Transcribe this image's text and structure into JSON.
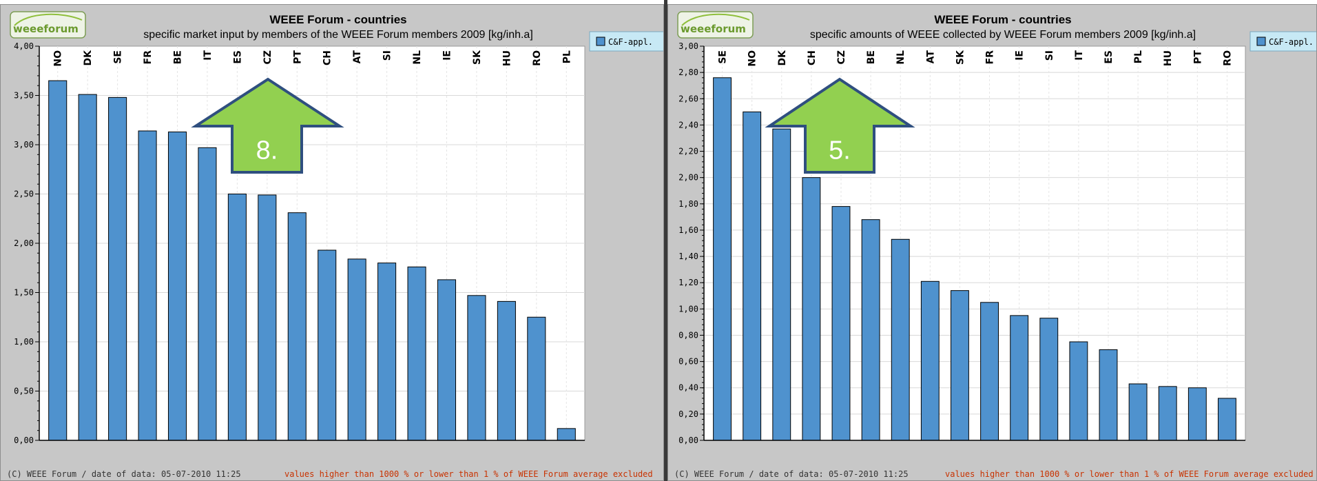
{
  "charts": [
    {
      "logo_text": "weeeforum",
      "title": "WEEE Forum - countries",
      "subtitle": "specific market input by members of the WEEE Forum members 2009 [kg/inh.a]",
      "legend_label": "C&F-appl.",
      "footer_left": "(C) WEEE Forum / date of data: 05-07-2010 11:25",
      "footer_right": "values higher than 1000 % or lower than 1 % of WEEE Forum average excluded",
      "arrow_label": "8.",
      "highlight_category": "CZ",
      "ylim": [
        0,
        4
      ],
      "y_ticks": [
        "0,00",
        "0,50",
        "1,00",
        "1,50",
        "2,00",
        "2,50",
        "3,00",
        "3,50",
        "4,00"
      ],
      "colors": {
        "bar": "#4f92ce",
        "arrow": "#92d050",
        "arrow_border": "#2f4f7f",
        "footer_right": "#c83200"
      }
    },
    {
      "logo_text": "weeeforum",
      "title": "WEEE Forum - countries",
      "subtitle": "specific amounts of WEEE collected by WEEE Forum members 2009 [kg/inh.a]",
      "legend_label": "C&F-appl.",
      "footer_left": "(C) WEEE Forum / date of data: 05-07-2010 11:25",
      "footer_right": "values higher than 1000 % or lower than 1 % of WEEE Forum average excluded",
      "arrow_label": "5.",
      "highlight_category": "CZ",
      "ylim": [
        0,
        3
      ],
      "y_ticks": [
        "0,00",
        "0,20",
        "0,40",
        "0,60",
        "0,80",
        "1,00",
        "1,20",
        "1,40",
        "1,60",
        "1,80",
        "2,00",
        "2,20",
        "2,40",
        "2,60",
        "2,80",
        "3,00"
      ],
      "colors": {
        "bar": "#4f92ce",
        "arrow": "#92d050",
        "arrow_border": "#2f4f7f",
        "footer_right": "#c83200"
      }
    }
  ],
  "chart_data": [
    {
      "type": "bar",
      "title": "WEEE Forum - countries",
      "subtitle": "specific market input by members of the WEEE Forum members 2009 [kg/inh.a]",
      "categories": [
        "NO",
        "DK",
        "SE",
        "FR",
        "BE",
        "IT",
        "ES",
        "CZ",
        "PT",
        "CH",
        "AT",
        "SI",
        "NL",
        "IE",
        "SK",
        "HU",
        "RO",
        "PL"
      ],
      "series": [
        {
          "name": "C&F-appl.",
          "values": [
            3.65,
            3.51,
            3.48,
            3.14,
            3.13,
            2.97,
            2.5,
            2.49,
            2.31,
            1.93,
            1.84,
            1.8,
            1.76,
            1.63,
            1.47,
            1.41,
            1.25,
            0.12
          ]
        }
      ],
      "ylim": [
        0,
        4
      ],
      "grid": true,
      "legend_position": "top-right"
    },
    {
      "type": "bar",
      "title": "WEEE Forum - countries",
      "subtitle": "specific amounts of WEEE collected by WEEE Forum members 2009 [kg/inh.a]",
      "categories": [
        "SE",
        "NO",
        "DK",
        "CH",
        "CZ",
        "BE",
        "NL",
        "AT",
        "SK",
        "FR",
        "IE",
        "SI",
        "IT",
        "ES",
        "PL",
        "HU",
        "PT",
        "RO"
      ],
      "series": [
        {
          "name": "C&F-appl.",
          "values": [
            2.76,
            2.5,
            2.37,
            2.0,
            1.78,
            1.68,
            1.53,
            1.21,
            1.14,
            1.05,
            0.95,
            0.93,
            0.75,
            0.69,
            0.43,
            0.41,
            0.4,
            0.32
          ]
        }
      ],
      "ylim": [
        0,
        3
      ],
      "grid": true,
      "legend_position": "top-right"
    }
  ]
}
